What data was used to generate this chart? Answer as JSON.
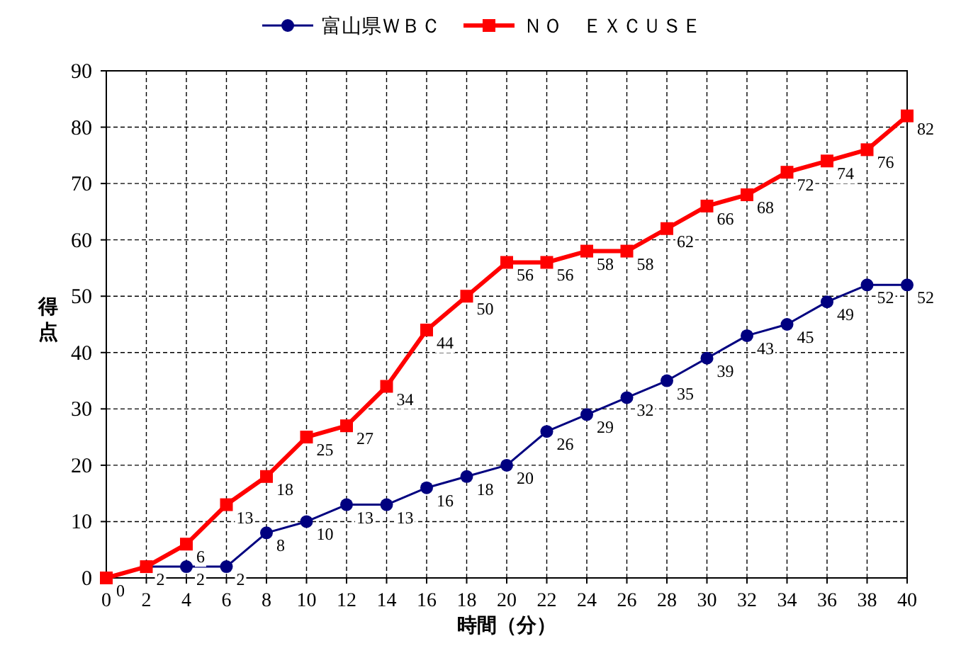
{
  "chart_data": {
    "type": "line",
    "xlabel": "時間（分）",
    "ylabel": "得点",
    "x": [
      0,
      2,
      4,
      6,
      8,
      10,
      12,
      14,
      16,
      18,
      20,
      22,
      24,
      26,
      28,
      30,
      32,
      34,
      36,
      38,
      40
    ],
    "series": [
      {
        "name": "富山県ＷＢＣ",
        "color": "#000080",
        "marker": "circle",
        "values": [
          0,
          2,
          2,
          2,
          8,
          10,
          13,
          13,
          16,
          18,
          20,
          26,
          29,
          32,
          35,
          39,
          43,
          45,
          49,
          52,
          52
        ]
      },
      {
        "name": "ＮＯ　ＥＸＣＵＳＥ",
        "color": "#ff0000",
        "marker": "square",
        "values": [
          0,
          2,
          6,
          13,
          18,
          25,
          27,
          34,
          44,
          50,
          56,
          56,
          58,
          58,
          62,
          66,
          68,
          72,
          74,
          76,
          82
        ],
        "value_labels": [
          null,
          null,
          "6",
          "13",
          "18",
          "25",
          "27",
          "34",
          "44",
          "50",
          "56",
          "56",
          "58",
          "58",
          "62",
          "66",
          "68",
          "72",
          "74",
          "76",
          "82"
        ]
      }
    ],
    "xlim": [
      0,
      40
    ],
    "xticks": [
      0,
      2,
      4,
      6,
      8,
      10,
      12,
      14,
      16,
      18,
      20,
      22,
      24,
      26,
      28,
      30,
      32,
      34,
      36,
      38,
      40
    ],
    "ylim": [
      0,
      90
    ],
    "yticks": [
      0,
      10,
      20,
      30,
      40,
      50,
      60,
      70,
      80,
      90
    ],
    "grid": true,
    "legend": "top",
    "data_labels": true,
    "line_style": "solid"
  }
}
